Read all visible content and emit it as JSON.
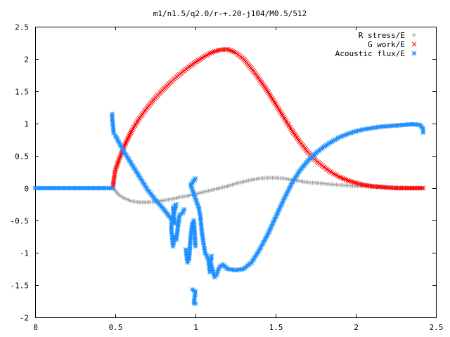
{
  "chart_data": {
    "type": "scatter",
    "title": "m1/n1.5/q2.0/r-+.20-j104/M0.5/512",
    "xlabel": "",
    "ylabel": "",
    "xlim": [
      0,
      2.5
    ],
    "ylim": [
      -2,
      2.5
    ],
    "xticks": [
      "0",
      "0.5",
      "1",
      "1.5",
      "2",
      "2.5"
    ],
    "yticks": [
      "2.5",
      "2",
      "1.5",
      "1",
      "0.5",
      "0",
      "-0.5",
      "-1",
      "-1.5",
      "-2"
    ],
    "legend_position": "top-right",
    "grid": false,
    "series": [
      {
        "name": "R stress/E",
        "marker": "+",
        "color": "#a0a0a0",
        "points": [
          [
            0.485,
            0.0
          ],
          [
            0.5,
            -0.04
          ],
          [
            0.52,
            -0.1
          ],
          [
            0.55,
            -0.15
          ],
          [
            0.6,
            -0.2
          ],
          [
            0.65,
            -0.22
          ],
          [
            0.7,
            -0.22
          ],
          [
            0.75,
            -0.21
          ],
          [
            0.8,
            -0.19
          ],
          [
            0.85,
            -0.17
          ],
          [
            0.9,
            -0.14
          ],
          [
            0.95,
            -0.12
          ],
          [
            1.0,
            -0.09
          ],
          [
            1.05,
            -0.06
          ],
          [
            1.1,
            -0.03
          ],
          [
            1.15,
            0.0
          ],
          [
            1.2,
            0.03
          ],
          [
            1.25,
            0.07
          ],
          [
            1.3,
            0.1
          ],
          [
            1.35,
            0.13
          ],
          [
            1.4,
            0.15
          ],
          [
            1.45,
            0.16
          ],
          [
            1.5,
            0.16
          ],
          [
            1.55,
            0.15
          ],
          [
            1.6,
            0.13
          ],
          [
            1.65,
            0.11
          ],
          [
            1.7,
            0.09
          ],
          [
            1.75,
            0.08
          ],
          [
            1.8,
            0.07
          ],
          [
            1.85,
            0.06
          ],
          [
            1.9,
            0.05
          ],
          [
            1.95,
            0.04
          ],
          [
            2.0,
            0.03
          ],
          [
            2.05,
            0.03
          ],
          [
            2.1,
            0.02
          ],
          [
            2.15,
            0.02
          ],
          [
            2.2,
            0.01
          ],
          [
            2.25,
            0.01
          ],
          [
            2.3,
            0.01
          ],
          [
            2.35,
            0.0
          ],
          [
            2.4,
            0.0
          ],
          [
            2.42,
            0.0
          ]
        ]
      },
      {
        "name": "G work/E",
        "marker": "x",
        "color": "#ff0000",
        "points": [
          [
            0.485,
            0.0
          ],
          [
            0.49,
            0.12
          ],
          [
            0.5,
            0.28
          ],
          [
            0.52,
            0.42
          ],
          [
            0.55,
            0.62
          ],
          [
            0.6,
            0.88
          ],
          [
            0.65,
            1.08
          ],
          [
            0.7,
            1.25
          ],
          [
            0.75,
            1.4
          ],
          [
            0.8,
            1.53
          ],
          [
            0.85,
            1.65
          ],
          [
            0.9,
            1.76
          ],
          [
            0.95,
            1.86
          ],
          [
            1.0,
            1.95
          ],
          [
            1.05,
            2.03
          ],
          [
            1.1,
            2.1
          ],
          [
            1.15,
            2.14
          ],
          [
            1.2,
            2.15
          ],
          [
            1.25,
            2.1
          ],
          [
            1.3,
            2.0
          ],
          [
            1.35,
            1.85
          ],
          [
            1.4,
            1.68
          ],
          [
            1.45,
            1.5
          ],
          [
            1.5,
            1.3
          ],
          [
            1.55,
            1.1
          ],
          [
            1.6,
            0.9
          ],
          [
            1.65,
            0.72
          ],
          [
            1.7,
            0.56
          ],
          [
            1.75,
            0.43
          ],
          [
            1.8,
            0.33
          ],
          [
            1.85,
            0.24
          ],
          [
            1.9,
            0.17
          ],
          [
            1.95,
            0.12
          ],
          [
            2.0,
            0.08
          ],
          [
            2.05,
            0.05
          ],
          [
            2.1,
            0.03
          ],
          [
            2.15,
            0.02
          ],
          [
            2.2,
            0.01
          ],
          [
            2.25,
            0.0
          ],
          [
            2.3,
            0.0
          ],
          [
            2.35,
            0.0
          ],
          [
            2.4,
            0.0
          ],
          [
            2.42,
            0.0
          ]
        ]
      },
      {
        "name": "Acoustic flux/E",
        "marker": "*",
        "color": "#1e90ff",
        "points": [
          [
            0.0,
            0.0
          ],
          [
            0.05,
            0.0
          ],
          [
            0.1,
            0.0
          ],
          [
            0.15,
            0.0
          ],
          [
            0.2,
            0.0
          ],
          [
            0.25,
            0.0
          ],
          [
            0.3,
            0.0
          ],
          [
            0.35,
            0.0
          ],
          [
            0.4,
            0.0
          ],
          [
            0.45,
            0.0
          ],
          [
            0.485,
            0.0
          ],
          [
            0.48,
            1.15
          ],
          [
            0.48,
            1.1
          ],
          [
            0.49,
            0.85
          ],
          [
            0.5,
            0.82
          ],
          [
            0.52,
            0.72
          ],
          [
            0.55,
            0.58
          ],
          [
            0.6,
            0.38
          ],
          [
            0.65,
            0.18
          ],
          [
            0.7,
            -0.02
          ],
          [
            0.75,
            -0.18
          ],
          [
            0.8,
            -0.32
          ],
          [
            0.85,
            -0.48
          ],
          [
            0.87,
            -0.55
          ],
          [
            0.86,
            -0.3
          ],
          [
            0.88,
            -0.25
          ],
          [
            0.85,
            -0.55
          ],
          [
            0.85,
            -0.65
          ],
          [
            0.86,
            -0.9
          ],
          [
            0.87,
            -0.75
          ],
          [
            0.88,
            -0.8
          ],
          [
            0.9,
            -0.42
          ],
          [
            0.92,
            -0.38
          ],
          [
            0.93,
            -0.33
          ],
          [
            0.94,
            -0.95
          ],
          [
            0.95,
            -1.15
          ],
          [
            0.96,
            -1.1
          ],
          [
            0.97,
            -0.75
          ],
          [
            0.98,
            -0.55
          ],
          [
            0.99,
            -0.5
          ],
          [
            1.0,
            -0.9
          ],
          [
            1.0,
            0.15
          ],
          [
            0.97,
            0.05
          ],
          [
            1.02,
            -0.3
          ],
          [
            1.03,
            -0.43
          ],
          [
            1.04,
            -0.68
          ],
          [
            1.05,
            -0.85
          ],
          [
            1.06,
            -1.0
          ],
          [
            1.07,
            -1.05
          ],
          [
            1.08,
            -1.1
          ],
          [
            1.09,
            -1.3
          ],
          [
            1.1,
            -1.05
          ],
          [
            0.98,
            -1.57
          ],
          [
            1.0,
            -1.6
          ],
          [
            0.99,
            -1.78
          ],
          [
            1.0,
            -1.79
          ],
          [
            1.1,
            -1.2
          ],
          [
            1.12,
            -1.38
          ],
          [
            1.13,
            -1.35
          ],
          [
            1.14,
            -1.28
          ],
          [
            1.15,
            -1.22
          ],
          [
            1.17,
            -1.18
          ],
          [
            1.2,
            -1.25
          ],
          [
            1.25,
            -1.27
          ],
          [
            1.3,
            -1.25
          ],
          [
            1.35,
            -1.15
          ],
          [
            1.4,
            -0.95
          ],
          [
            1.45,
            -0.72
          ],
          [
            1.5,
            -0.45
          ],
          [
            1.55,
            -0.18
          ],
          [
            1.6,
            0.07
          ],
          [
            1.65,
            0.27
          ],
          [
            1.7,
            0.42
          ],
          [
            1.75,
            0.54
          ],
          [
            1.8,
            0.64
          ],
          [
            1.85,
            0.72
          ],
          [
            1.9,
            0.79
          ],
          [
            1.95,
            0.84
          ],
          [
            2.0,
            0.88
          ],
          [
            2.05,
            0.91
          ],
          [
            2.1,
            0.93
          ],
          [
            2.15,
            0.95
          ],
          [
            2.2,
            0.96
          ],
          [
            2.25,
            0.97
          ],
          [
            2.3,
            0.98
          ],
          [
            2.35,
            0.99
          ],
          [
            2.4,
            0.98
          ],
          [
            2.42,
            0.92
          ],
          [
            2.42,
            0.86
          ]
        ]
      }
    ]
  }
}
